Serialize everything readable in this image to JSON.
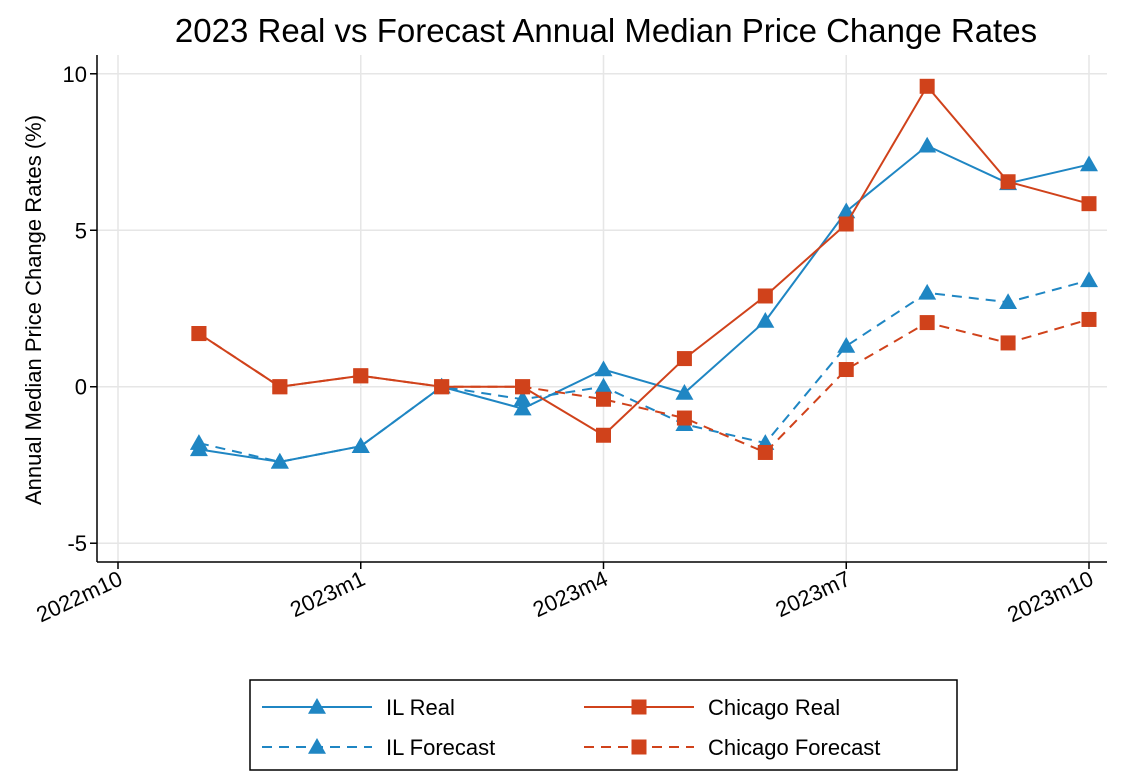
{
  "chart_data": {
    "type": "line",
    "title": "2023 Real vs Forecast Annual Median Price Change Rates",
    "y_label": "Annual Median Price Change Rates (%)",
    "categories": [
      "2022m10",
      null,
      null,
      "2023m1",
      null,
      null,
      "2023m4",
      null,
      null,
      "2023m7",
      null,
      null,
      "2023m10"
    ],
    "series": [
      {
        "name": "IL Real",
        "color": "#1f86c3",
        "line_style": "solid",
        "marker": "triangle",
        "values": [
          null,
          -2.0,
          -2.4,
          -1.9,
          0.0,
          -0.7,
          0.55,
          -0.2,
          2.1,
          5.6,
          7.7,
          6.5,
          7.1
        ]
      },
      {
        "name": "IL Forecast",
        "color": "#1f86c3",
        "line_style": "dashed",
        "marker": "triangle",
        "values": [
          null,
          -1.8,
          -2.4,
          -1.9,
          0.0,
          -0.4,
          0.0,
          -1.2,
          -1.8,
          1.3,
          3.0,
          2.7,
          3.4
        ]
      },
      {
        "name": "Chicago Real",
        "color": "#d0421b",
        "line_style": "solid",
        "marker": "square",
        "values": [
          null,
          1.7,
          0.0,
          0.35,
          0.0,
          0.0,
          -1.55,
          0.9,
          2.9,
          5.2,
          9.6,
          6.55,
          5.85
        ]
      },
      {
        "name": "Chicago Forecast",
        "color": "#d0421b",
        "line_style": "dashed",
        "marker": "square",
        "values": [
          null,
          1.7,
          0.0,
          0.35,
          0.0,
          0.0,
          -0.4,
          -1.0,
          -2.1,
          0.55,
          2.05,
          1.4,
          2.15
        ]
      }
    ],
    "ylim": [
      -5.6,
      10.6
    ],
    "yticks": [
      -5,
      0,
      5,
      10
    ],
    "grid": true
  }
}
